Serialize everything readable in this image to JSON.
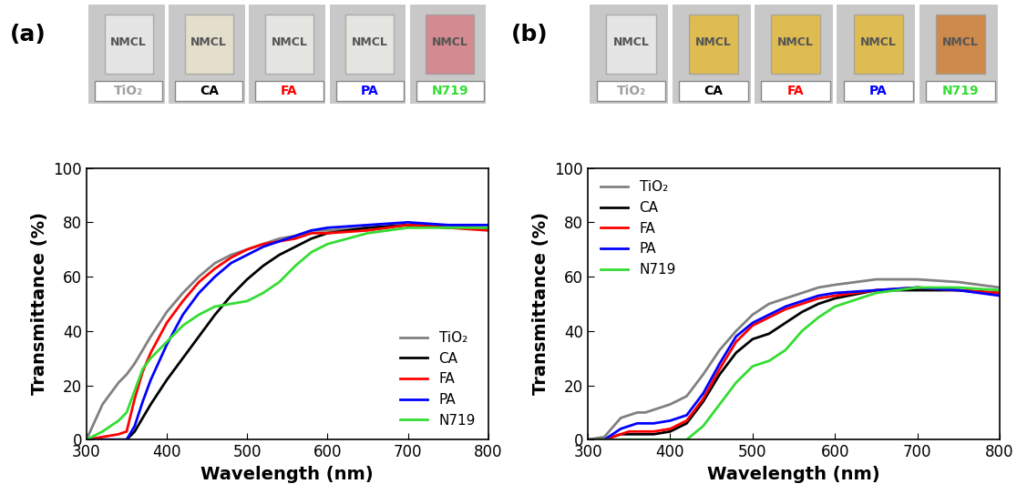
{
  "chart_data": [
    {
      "type": "line",
      "panel_label": "(a)",
      "photo_text": "NMCL",
      "samples": [
        {
          "label": "TiO₂",
          "color": "#a0a0a0"
        },
        {
          "label": "CA",
          "color": "#000000"
        },
        {
          "label": "FA",
          "color": "#ff0000"
        },
        {
          "label": "PA",
          "color": "#0000ff"
        },
        {
          "label": "N719",
          "color": "#33dd33"
        }
      ],
      "x_label": "Wavelength (nm)",
      "y_label": "Transmittance (%)",
      "x": [
        300,
        320,
        340,
        350,
        360,
        370,
        380,
        400,
        420,
        440,
        460,
        480,
        500,
        520,
        540,
        560,
        580,
        600,
        650,
        700,
        750,
        800
      ],
      "series": [
        {
          "name": "TiO₂",
          "color": "#808080",
          "values": [
            0,
            13,
            21,
            24,
            28,
            33,
            38,
            47,
            54,
            60,
            65,
            68,
            70,
            72,
            74,
            75,
            77,
            77,
            78,
            79,
            79,
            78
          ]
        },
        {
          "name": "CA",
          "color": "#000000",
          "values": [
            0,
            0,
            0,
            0,
            3,
            8,
            13,
            22,
            30,
            38,
            46,
            53,
            59,
            64,
            68,
            71,
            74,
            76,
            78,
            79,
            78,
            78
          ]
        },
        {
          "name": "FA",
          "color": "#ff0000",
          "values": [
            0,
            1,
            2,
            3,
            15,
            25,
            32,
            43,
            51,
            58,
            63,
            67,
            70,
            72,
            73,
            74,
            76,
            76,
            77,
            79,
            78,
            77
          ]
        },
        {
          "name": "PA",
          "color": "#0000ff",
          "values": [
            0,
            0,
            0,
            0,
            5,
            14,
            22,
            35,
            46,
            54,
            60,
            65,
            68,
            71,
            73,
            75,
            77,
            78,
            79,
            80,
            79,
            79
          ]
        },
        {
          "name": "N719",
          "color": "#33dd33",
          "values": [
            0,
            3,
            7,
            10,
            18,
            26,
            30,
            36,
            42,
            46,
            49,
            50,
            51,
            54,
            58,
            64,
            69,
            72,
            76,
            78,
            78,
            78
          ]
        }
      ],
      "xlim": [
        300,
        800
      ],
      "xticks": [
        300,
        400,
        500,
        600,
        700,
        800
      ],
      "ylim": [
        0,
        100
      ],
      "yticks": [
        0,
        20,
        40,
        60,
        80,
        100
      ],
      "legend": "lower right",
      "grid": false
    },
    {
      "type": "line",
      "panel_label": "(b)",
      "photo_text": "NMCL",
      "samples": [
        {
          "label": "TiO₂",
          "color": "#a0a0a0"
        },
        {
          "label": "CA",
          "color": "#000000"
        },
        {
          "label": "FA",
          "color": "#ff0000"
        },
        {
          "label": "PA",
          "color": "#0000ff"
        },
        {
          "label": "N719",
          "color": "#33dd33"
        }
      ],
      "x_label": "Wavelength (nm)",
      "y_label": "Transmittance (%)",
      "x": [
        300,
        320,
        340,
        350,
        360,
        370,
        380,
        400,
        420,
        440,
        460,
        480,
        500,
        520,
        540,
        560,
        580,
        600,
        650,
        700,
        750,
        800
      ],
      "series": [
        {
          "name": "TiO₂",
          "color": "#808080",
          "values": [
            0,
            1,
            8,
            9,
            10,
            10,
            11,
            13,
            16,
            24,
            33,
            40,
            46,
            50,
            52,
            54,
            56,
            57,
            59,
            59,
            58,
            56
          ]
        },
        {
          "name": "CA",
          "color": "#000000",
          "values": [
            0,
            0,
            2,
            2,
            2,
            2,
            2,
            3,
            6,
            14,
            24,
            32,
            37,
            39,
            43,
            47,
            50,
            52,
            55,
            55,
            55,
            54
          ]
        },
        {
          "name": "FA",
          "color": "#ff0000",
          "values": [
            0,
            0,
            2,
            3,
            3,
            3,
            3,
            4,
            7,
            15,
            26,
            36,
            42,
            45,
            48,
            50,
            52,
            53,
            55,
            56,
            55,
            54
          ]
        },
        {
          "name": "PA",
          "color": "#0000ff",
          "values": [
            0,
            0,
            4,
            5,
            6,
            6,
            6,
            7,
            9,
            17,
            28,
            38,
            43,
            46,
            49,
            51,
            53,
            54,
            55,
            56,
            55,
            53
          ]
        },
        {
          "name": "N719",
          "color": "#33dd33",
          "values": [
            0,
            0,
            0,
            0,
            0,
            0,
            0,
            0,
            0,
            5,
            13,
            21,
            27,
            29,
            33,
            40,
            45,
            49,
            54,
            56,
            56,
            55
          ]
        }
      ],
      "xlim": [
        300,
        800
      ],
      "xticks": [
        300,
        400,
        500,
        600,
        700,
        800
      ],
      "ylim": [
        0,
        100
      ],
      "yticks": [
        0,
        20,
        40,
        60,
        80,
        100
      ],
      "legend": "upper left",
      "grid": false
    }
  ]
}
